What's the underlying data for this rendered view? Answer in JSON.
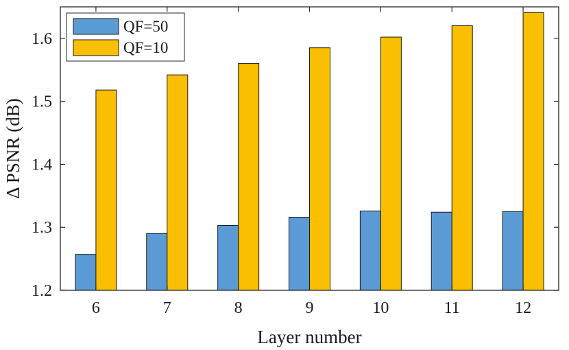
{
  "chart_data": {
    "type": "bar",
    "title": "",
    "xlabel": "Layer number",
    "ylabel": "Δ PSNR (dB)",
    "categories": [
      "6",
      "7",
      "8",
      "9",
      "10",
      "11",
      "12"
    ],
    "series": [
      {
        "name": "QF=50",
        "color": "#5b9bd5",
        "values": [
          1.257,
          1.29,
          1.303,
          1.316,
          1.326,
          1.324,
          1.325
        ]
      },
      {
        "name": "QF=10",
        "color": "#f9bf00",
        "values": [
          1.518,
          1.542,
          1.56,
          1.585,
          1.602,
          1.62,
          1.641
        ]
      }
    ],
    "ylim": [
      1.2,
      1.65
    ],
    "yticks": [
      "1.2",
      "1.3",
      "1.4",
      "1.5",
      "1.6"
    ],
    "grid": false,
    "legend_position": "top-left"
  }
}
